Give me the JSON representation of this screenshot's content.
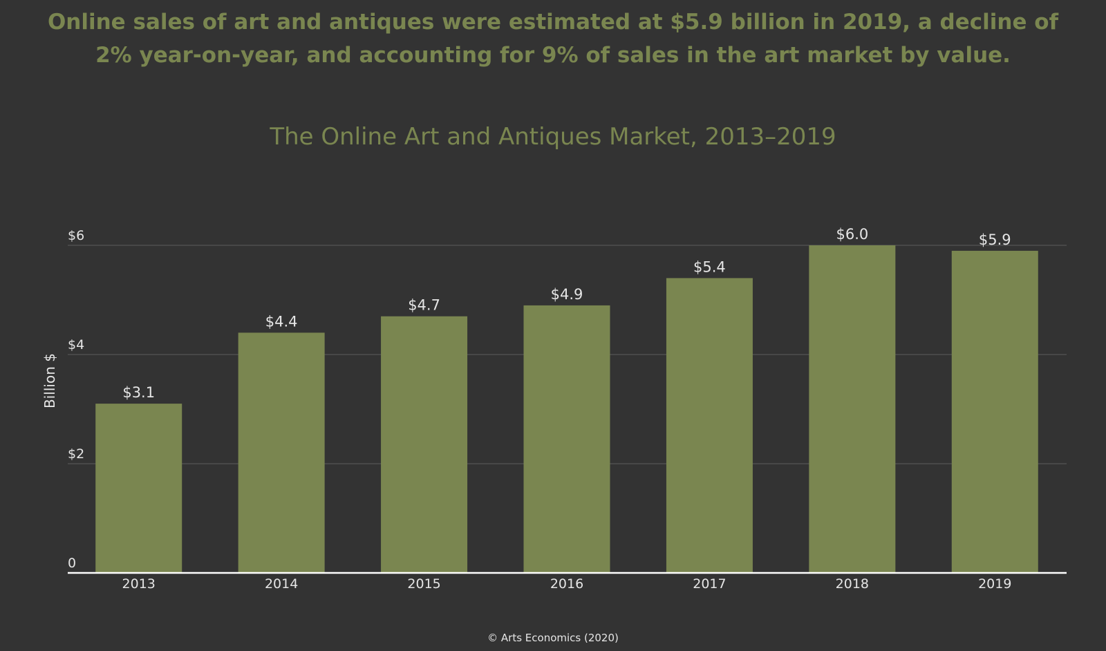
{
  "headline": "Online sales of art and antiques were estimated at $5.9 billion in 2019, a decline of 2% year-on-year, and accounting for 9% of sales in the art market by value.",
  "footer": "© Arts Economics (2020)",
  "colors": {
    "background": "#333333",
    "accent": "#7a8650",
    "bar": "#7a8650",
    "text": "#e6e6e6",
    "grid": "#5c5c5c",
    "axis": "#ffffff"
  },
  "chart_data": {
    "type": "bar",
    "title": "The Online Art and Antiques Market, 2013–2019",
    "ylabel": "Billion $",
    "xlabel": "",
    "categories": [
      "2013",
      "2014",
      "2015",
      "2016",
      "2017",
      "2018",
      "2019"
    ],
    "values": [
      3.1,
      4.4,
      4.7,
      4.9,
      5.4,
      6.0,
      5.9
    ],
    "data_labels": [
      "$3.1",
      "$4.4",
      "$4.7",
      "$4.9",
      "$5.4",
      "$6.0",
      "$5.9"
    ],
    "ylim": [
      0,
      6
    ],
    "yticks": [
      0,
      2,
      4,
      6
    ],
    "ytick_labels": [
      "0",
      "$2",
      "$4",
      "$6"
    ],
    "grid": true,
    "legend": "none"
  }
}
